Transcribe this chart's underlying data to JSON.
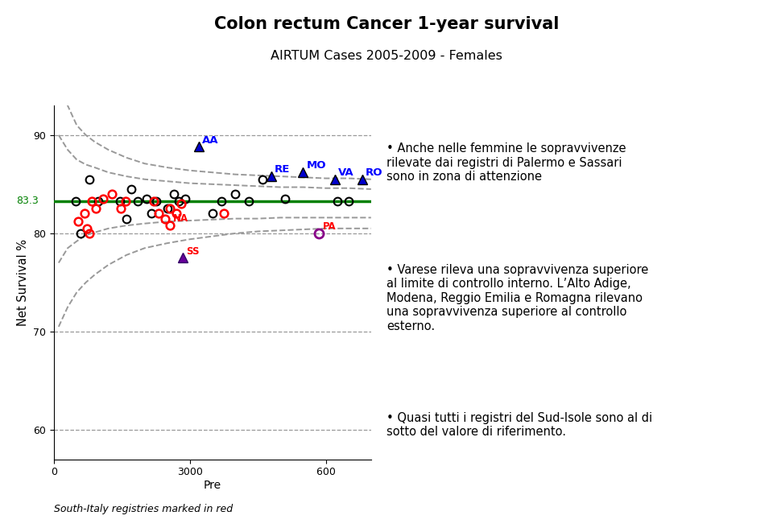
{
  "title": "Colon rectum Cancer 1-year survival",
  "subtitle": "AIRTUM Cases 2005-2009 - Females",
  "xlabel": "Pre",
  "ylabel": "Net Survival %",
  "xlim": [
    0,
    7000
  ],
  "ylim": [
    57,
    93
  ],
  "yticks": [
    60,
    70,
    80,
    90
  ],
  "xticks": [
    0,
    3000,
    6000
  ],
  "xtick_labels": [
    "0",
    "3000",
    "600⁠"
  ],
  "reference_line": 83.3,
  "reference_color": "#008000",
  "background_color": "#ffffff",
  "footnote": "South-Italy registries marked in red",
  "black_circles": [
    [
      480,
      83.3
    ],
    [
      580,
      80.0
    ],
    [
      780,
      85.5
    ],
    [
      980,
      83.3
    ],
    [
      1450,
      83.3
    ],
    [
      1600,
      81.5
    ],
    [
      1700,
      84.5
    ],
    [
      1850,
      83.3
    ],
    [
      2050,
      83.5
    ],
    [
      2150,
      82.0
    ],
    [
      2250,
      83.3
    ],
    [
      2500,
      82.5
    ],
    [
      2650,
      84.0
    ],
    [
      2750,
      83.3
    ],
    [
      2900,
      83.5
    ],
    [
      3500,
      82.0
    ],
    [
      3700,
      83.3
    ],
    [
      4000,
      84.0
    ],
    [
      4300,
      83.3
    ],
    [
      4600,
      85.5
    ],
    [
      6250,
      83.3
    ],
    [
      6500,
      83.3
    ],
    [
      5100,
      83.5
    ]
  ],
  "red_circles": [
    [
      530,
      81.2
    ],
    [
      680,
      82.0
    ],
    [
      730,
      80.5
    ],
    [
      780,
      80.0
    ],
    [
      830,
      83.3
    ],
    [
      930,
      82.5
    ],
    [
      1080,
      83.5
    ],
    [
      1280,
      84.0
    ],
    [
      1480,
      82.5
    ],
    [
      1580,
      83.3
    ],
    [
      2200,
      83.3
    ],
    [
      2300,
      82.0
    ],
    [
      2450,
      81.5
    ],
    [
      2550,
      82.5
    ],
    [
      2700,
      82.0
    ],
    [
      2800,
      83.0
    ],
    [
      3750,
      82.0
    ]
  ],
  "blue_triangles": [
    [
      3200,
      88.8,
      "AA"
    ],
    [
      4800,
      85.8,
      "RE"
    ],
    [
      5500,
      86.2,
      "MO"
    ],
    [
      6200,
      85.5,
      "VA"
    ],
    [
      6800,
      85.5,
      "RO"
    ]
  ],
  "purple_triangle": [
    2850,
    77.5,
    "SS"
  ],
  "purple_circle_pa": [
    5850,
    80.0,
    "PA"
  ],
  "red_labeled_na": [
    2550,
    80.8,
    "NA"
  ],
  "conf_band_x": [
    100,
    300,
    500,
    700,
    900,
    1200,
    1600,
    2000,
    2500,
    3000,
    3500,
    4000,
    4500,
    5000,
    5500,
    6000,
    6500,
    7000
  ],
  "conf_band_upper1": [
    90.0,
    88.5,
    87.5,
    87.0,
    86.7,
    86.2,
    85.8,
    85.5,
    85.3,
    85.1,
    85.0,
    84.9,
    84.8,
    84.7,
    84.7,
    84.6,
    84.6,
    84.5
  ],
  "conf_band_lower1": [
    77.0,
    78.5,
    79.2,
    79.8,
    80.1,
    80.5,
    80.8,
    81.0,
    81.2,
    81.3,
    81.4,
    81.5,
    81.5,
    81.6,
    81.6,
    81.6,
    81.6,
    81.6
  ],
  "conf_band_upper2": [
    95.5,
    93.0,
    91.0,
    90.0,
    89.3,
    88.5,
    87.7,
    87.1,
    86.7,
    86.4,
    86.2,
    86.0,
    85.9,
    85.8,
    85.7,
    85.6,
    85.6,
    85.5
  ],
  "conf_band_lower2": [
    70.5,
    72.5,
    74.0,
    75.0,
    75.8,
    76.8,
    77.8,
    78.5,
    79.0,
    79.4,
    79.7,
    80.0,
    80.2,
    80.3,
    80.4,
    80.5,
    80.5,
    80.5
  ],
  "text_block1": "Anche nelle femmine le sopravvivenze\nrilevate dai registri di Palermo e Sassari\nsono in zona di attenzione",
  "text_block2": "Varese rileva una sopravvivenza superiore\nal limite di controllo interno. L’Alto Adige,\nModena, Reggio Emilia e Romagna rilevano\nuna sopravvivenza superiore al controllo\nesterno.",
  "text_block3": "Quasi tutti i registri del Sud-Isole sono al di\nsotto del valore di riferimento."
}
